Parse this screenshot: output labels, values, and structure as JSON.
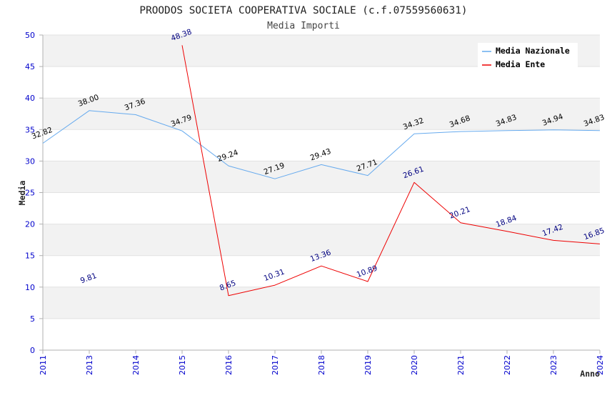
{
  "chart_data": {
    "type": "line",
    "title": "PROODOS SOCIETA COOPERATIVA SOCIALE (c.f.07559560631)",
    "subtitle": "Media Importi",
    "xlabel": "Anno",
    "ylabel": "Media",
    "categories": [
      "2011",
      "2013",
      "2014",
      "2015",
      "2016",
      "2017",
      "2018",
      "2019",
      "2020",
      "2021",
      "2022",
      "2023",
      "2024"
    ],
    "ylim": [
      0,
      50
    ],
    "yticks": [
      0,
      5,
      10,
      15,
      20,
      25,
      30,
      35,
      40,
      45,
      50
    ],
    "grid": true,
    "legend_position": "top-right",
    "series": [
      {
        "name": "Media Nazionale",
        "color": "#66aaee",
        "label_color": "#000000",
        "values": [
          32.82,
          38.0,
          37.36,
          34.79,
          29.24,
          27.19,
          29.43,
          27.71,
          34.32,
          34.68,
          34.83,
          34.94,
          34.83
        ],
        "labels": [
          "32.82",
          "38.00",
          "37.36",
          "34.79",
          "29.24",
          "27.19",
          "29.43",
          "27.71",
          "34.32",
          "34.68",
          "34.83",
          "34.94",
          "34.83"
        ]
      },
      {
        "name": "Media Ente",
        "color": "#ee0000",
        "label_color": "#000080",
        "values": [
          null,
          9.81,
          null,
          48.38,
          8.65,
          10.31,
          13.36,
          10.89,
          26.61,
          20.21,
          18.84,
          17.42,
          16.85
        ],
        "labels": [
          null,
          "9.81",
          null,
          "48.38",
          "8.65",
          "10.31",
          "13.36",
          "10.89",
          "26.61",
          "20.21",
          "18.84",
          "17.42",
          "16.85"
        ]
      }
    ]
  },
  "colors": {
    "tick_label": "#0000cc",
    "band": "#f2f2f2",
    "grid": "#e2e2e2",
    "axis": "#b0b0b0"
  }
}
